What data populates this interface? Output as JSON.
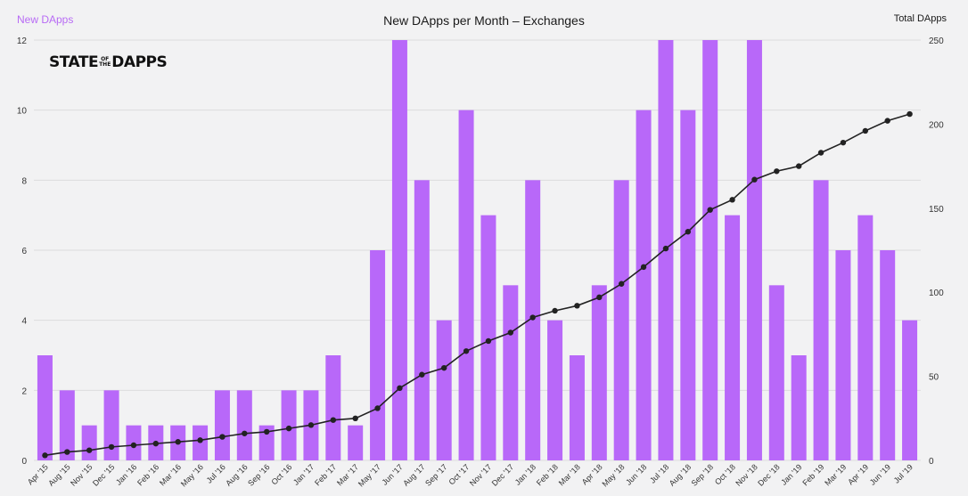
{
  "header": {
    "left_label": "New DApps",
    "title": "New DApps per Month – Exchanges",
    "right_label": "Total DApps"
  },
  "logo": {
    "part1": "STATE",
    "of": "OF",
    "the": "THE",
    "part2": "DAPPS"
  },
  "colors": {
    "bar": "#b868f9",
    "line": "#222222",
    "left_label": "#b86bf5"
  },
  "chart_data": {
    "type": "bar",
    "title": "New DApps per Month – Exchanges",
    "ylabel": "New DApps",
    "y2label": "Total DApps",
    "ylim": [
      0,
      12
    ],
    "y2lim": [
      0,
      250
    ],
    "yticks": [
      0,
      2,
      4,
      6,
      8,
      10,
      12
    ],
    "y2ticks": [
      0,
      50,
      100,
      150,
      200,
      250
    ],
    "grid": true,
    "categories": [
      "Apr '15",
      "Aug '15",
      "Nov '15",
      "Dec '15",
      "Jan '16",
      "Feb '16",
      "Mar '16",
      "May '16",
      "Jul '16",
      "Aug '16",
      "Sep '16",
      "Oct '16",
      "Jan '17",
      "Feb '17",
      "Mar '17",
      "May '17",
      "Jun '17",
      "Aug '17",
      "Sep '17",
      "Oct '17",
      "Nov '17",
      "Dec '17",
      "Jan '18",
      "Feb '18",
      "Mar '18",
      "Apr '18",
      "May '18",
      "Jun '18",
      "Jul '18",
      "Aug '18",
      "Sep '18",
      "Oct '18",
      "Nov '18",
      "Dec '18",
      "Jan '19",
      "Feb '19",
      "Mar '19",
      "Apr '19",
      "Jun '19",
      "Jul '19"
    ],
    "series": [
      {
        "name": "New DApps",
        "type": "bar",
        "axis": "left",
        "values": [
          3,
          2,
          1,
          2,
          1,
          1,
          1,
          1,
          2,
          2,
          1,
          2,
          2,
          3,
          1,
          6,
          12,
          8,
          4,
          10,
          7,
          5,
          8,
          4,
          3,
          5,
          8,
          10,
          12,
          10,
          12,
          7,
          12,
          5,
          3,
          8,
          6,
          7,
          6,
          4
        ]
      },
      {
        "name": "Total DApps",
        "type": "line",
        "axis": "right",
        "values": [
          3,
          5,
          6,
          8,
          9,
          10,
          11,
          12,
          14,
          16,
          17,
          19,
          21,
          24,
          25,
          31,
          43,
          51,
          55,
          65,
          71,
          76,
          85,
          89,
          92,
          97,
          105,
          115,
          126,
          136,
          149,
          155,
          167,
          172,
          175,
          183,
          189,
          196,
          202,
          206
        ]
      }
    ]
  }
}
